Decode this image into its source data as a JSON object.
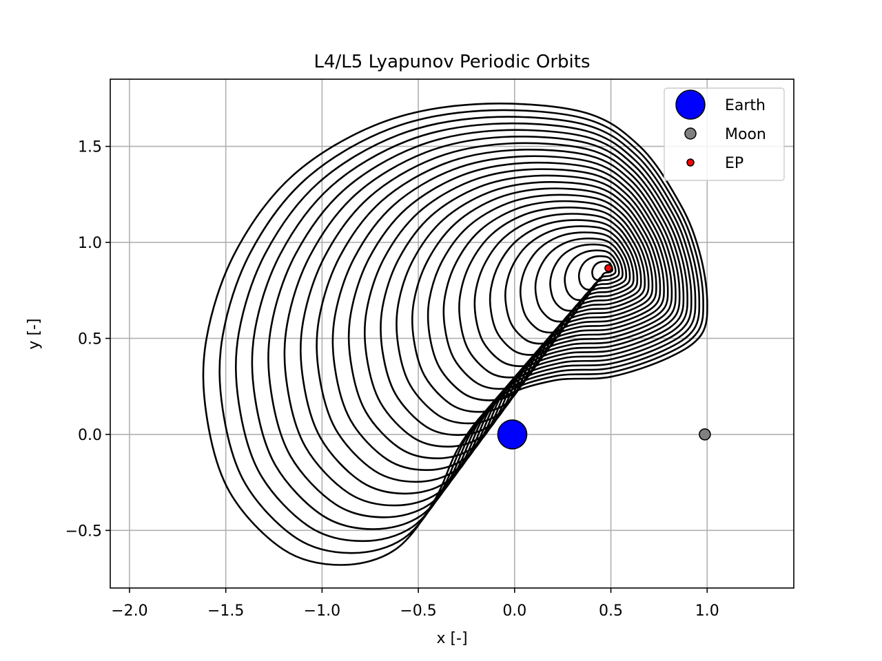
{
  "chart_data": {
    "type": "line",
    "title": "L4/L5 Lyapunov Periodic Orbits",
    "xlabel": "x [-]",
    "ylabel": "y [-]",
    "xlim": [
      -2.1,
      1.45
    ],
    "ylim": [
      -0.8,
      1.85
    ],
    "x_ticks": [
      -2.0,
      -1.5,
      -1.0,
      -0.5,
      0.0,
      0.5,
      1.0
    ],
    "x_tick_labels": [
      "−2.0",
      "−1.5",
      "−1.0",
      "−0.5",
      "0.0",
      "0.5",
      "1.0"
    ],
    "y_ticks": [
      -0.5,
      0.0,
      0.5,
      1.0,
      1.5
    ],
    "y_tick_labels": [
      "−0.5",
      "0.0",
      "0.5",
      "1.0",
      "1.5"
    ],
    "grid": true,
    "legend_position": "top-right",
    "orbit_family": {
      "count": 26,
      "color": "#000000",
      "center": [
        0.487,
        0.866
      ],
      "outermost_extent": {
        "x_min": -1.6,
        "x_max": 1.0,
        "y_min": -0.68,
        "y_max": 1.72
      }
    },
    "series": [
      {
        "name": "Earth",
        "marker": "circle",
        "color": "#0000ff",
        "edge": "#000000",
        "x": [
          -0.012
        ],
        "y": [
          0.0
        ]
      },
      {
        "name": "Moon",
        "marker": "circle",
        "color": "#808080",
        "edge": "#000000",
        "x": [
          0.988
        ],
        "y": [
          0.0
        ]
      },
      {
        "name": "EP",
        "marker": "circle",
        "color": "#ff0000",
        "edge": "#000000",
        "x": [
          0.487
        ],
        "y": [
          0.866
        ]
      }
    ]
  }
}
